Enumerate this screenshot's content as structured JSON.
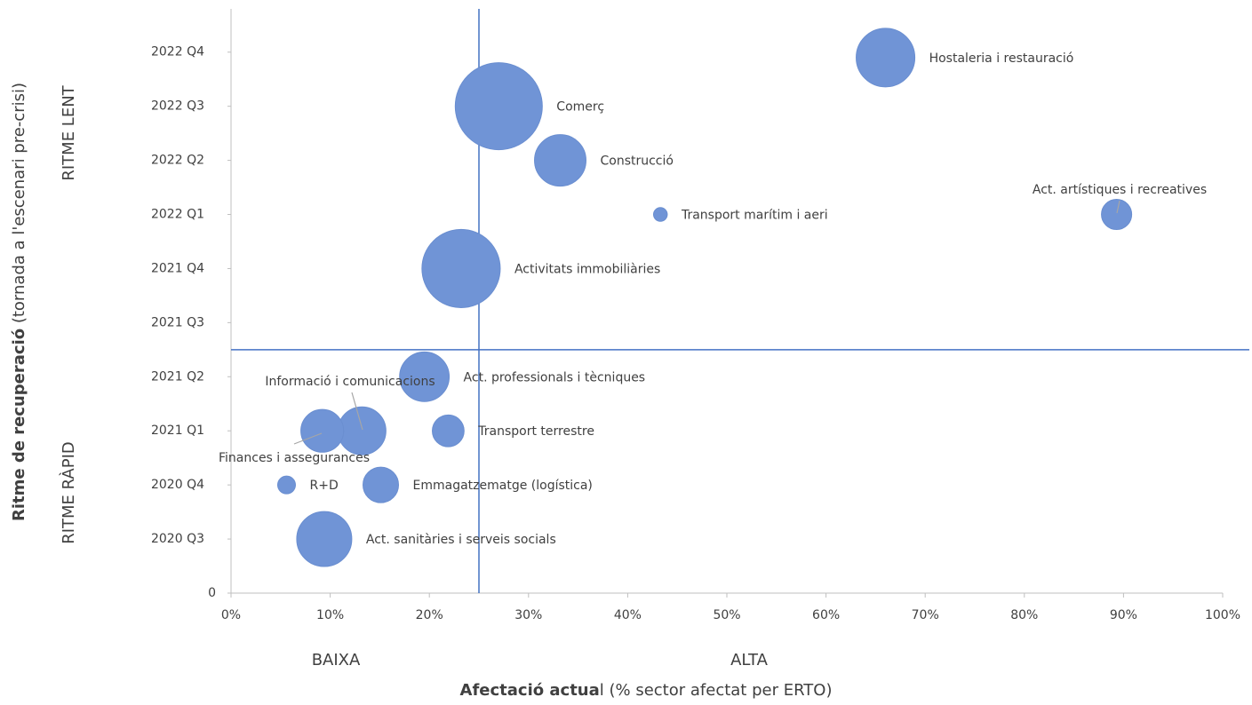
{
  "chart_data": {
    "type": "bubble",
    "ylabel": {
      "bold": "Ritme de recuperació",
      "normal": " (tornada a l'escenari pre-crisi)"
    },
    "xlabel": {
      "bold": "Afectació actua",
      "normal": "l (% sector afectat per ERTO)"
    },
    "annotations": [
      "RITME LENT",
      "RITME RÀPID",
      "BAIXA",
      "ALTA"
    ],
    "labels": [
      "Hostaleria i restauració",
      "Comerç",
      "Construcció",
      "Transport marítim i aeri",
      "Act. artístiques i recreatives",
      "Activitats immobiliàries",
      "Act. professionals i tècniques",
      "Informació i comunicacions",
      "Finances i assegurances",
      "Transport terrestre",
      "R+D",
      "Emmagatzematge (logística)",
      "Act. sanitàries i serveis socials"
    ],
    "x": [
      66.0,
      27.0,
      33.2,
      43.3,
      89.3,
      23.2,
      19.5,
      13.2,
      9.2,
      21.9,
      5.6,
      15.1,
      9.4
    ],
    "y": [
      9.9,
      9.0,
      8.0,
      7.0,
      7.0,
      6.0,
      4.0,
      3.0,
      3.0,
      3.0,
      2.0,
      2.0,
      1.0
    ],
    "sizes": [
      109,
      240,
      84,
      6,
      29,
      194,
      78,
      73,
      58,
      32,
      10,
      40,
      96
    ],
    "color": "#7094d6",
    "reference_lines": {
      "x": 25,
      "y": 4.5,
      "color": "#4472c4"
    },
    "xlim": [
      0,
      100
    ],
    "xticks": [
      {
        "value": 0,
        "label": "0%"
      },
      {
        "value": 10,
        "label": "10%"
      },
      {
        "value": 20,
        "label": "20%"
      },
      {
        "value": 30,
        "label": "30%"
      },
      {
        "value": 40,
        "label": "40%"
      },
      {
        "value": 50,
        "label": "50%"
      },
      {
        "value": 60,
        "label": "60%"
      },
      {
        "value": 70,
        "label": "70%"
      },
      {
        "value": 80,
        "label": "80%"
      },
      {
        "value": 90,
        "label": "90%"
      },
      {
        "value": 100,
        "label": "100%"
      }
    ],
    "ylim": [
      0,
      10.8
    ],
    "yticks": [
      0,
      {
        "value": 1,
        "label": "2020 Q3"
      },
      {
        "value": 2,
        "label": "2020 Q4"
      },
      {
        "value": 3,
        "label": "2021 Q1"
      },
      {
        "value": 4,
        "label": "2021 Q2"
      },
      {
        "value": 5,
        "label": "2021 Q3"
      },
      {
        "value": 6,
        "label": "2021 Q4"
      },
      {
        "value": 7,
        "label": "2022 Q1"
      },
      {
        "value": 8,
        "label": "2022 Q2"
      },
      {
        "value": 9,
        "label": "2022 Q3"
      },
      {
        "value": 10,
        "label": "2022 Q4"
      }
    ]
  }
}
